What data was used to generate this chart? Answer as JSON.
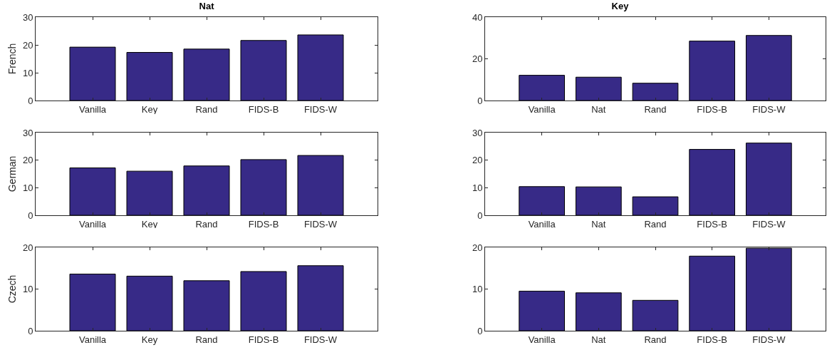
{
  "chart_data": [
    {
      "type": "bar",
      "title": "Nat",
      "ylabel": "French",
      "categories": [
        "Vanilla",
        "Key",
        "Rand",
        "FIDS-B",
        "FIDS-W"
      ],
      "values": [
        19.2,
        17.3,
        18.5,
        21.6,
        23.6
      ],
      "color": "#372a87",
      "ylim": [
        0,
        30
      ],
      "yticks": [
        0,
        10,
        20,
        30
      ]
    },
    {
      "type": "bar",
      "title": "Key",
      "categories": [
        "Vanilla",
        "Nat",
        "Rand",
        "FIDS-B",
        "FIDS-W"
      ],
      "values": [
        12.1,
        11.2,
        8.3,
        28.5,
        31.2
      ],
      "color": "#372a87",
      "ylim": [
        0,
        40
      ],
      "yticks": [
        0,
        20,
        40
      ]
    },
    {
      "type": "bar",
      "ylabel": "German",
      "categories": [
        "Vanilla",
        "Key",
        "Rand",
        "FIDS-B",
        "FIDS-W"
      ],
      "values": [
        17.2,
        16.0,
        17.9,
        20.2,
        21.7
      ],
      "color": "#372a87",
      "ylim": [
        0,
        30
      ],
      "yticks": [
        0,
        10,
        20,
        30
      ]
    },
    {
      "type": "bar",
      "categories": [
        "Vanilla",
        "Nat",
        "Rand",
        "FIDS-B",
        "FIDS-W"
      ],
      "values": [
        10.4,
        10.3,
        6.7,
        23.9,
        26.2
      ],
      "color": "#372a87",
      "ylim": [
        0,
        30
      ],
      "yticks": [
        0,
        10,
        20,
        30
      ]
    },
    {
      "type": "bar",
      "ylabel": "Czech",
      "categories": [
        "Vanilla",
        "Key",
        "Rand",
        "FIDS-B",
        "FIDS-W"
      ],
      "values": [
        13.6,
        13.1,
        12.0,
        14.2,
        15.6
      ],
      "color": "#372a87",
      "ylim": [
        0,
        20
      ],
      "yticks": [
        0,
        10,
        20
      ]
    },
    {
      "type": "bar",
      "categories": [
        "Vanilla",
        "Nat",
        "Rand",
        "FIDS-B",
        "FIDS-W"
      ],
      "values": [
        9.5,
        9.1,
        7.3,
        17.9,
        19.8
      ],
      "color": "#372a87",
      "ylim": [
        0,
        20
      ],
      "yticks": [
        0,
        10,
        20
      ]
    }
  ]
}
